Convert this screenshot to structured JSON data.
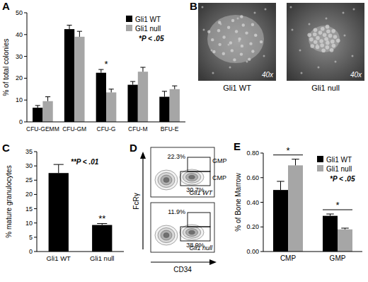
{
  "chart_data": [
    {
      "type": "bar",
      "panel": "A",
      "y_label": "% of total colonies",
      "categories": [
        "CFU-GEMM",
        "CFU-GM",
        "CFU-G",
        "CFU-M",
        "BFU-E"
      ],
      "series": [
        {
          "name": "Gli1 WT",
          "color": "#000000",
          "values": [
            6.5,
            42.5,
            22.5,
            17,
            11.5
          ],
          "errors": [
            1,
            1.8,
            1.5,
            1.5,
            2.5
          ]
        },
        {
          "name": "Gli1 null",
          "color": "#a6a6a6",
          "values": [
            9.5,
            39,
            13.5,
            23,
            15
          ],
          "errors": [
            2,
            2.5,
            1.5,
            2,
            1.5
          ]
        }
      ],
      "ylim": [
        0,
        50
      ],
      "yticks": [
        0,
        10,
        20,
        30,
        40,
        50
      ],
      "grid": false,
      "legend": "top-right",
      "annotations": [
        {
          "text": "*P < .05"
        },
        {
          "text": "*",
          "category": "CFU-G"
        }
      ]
    },
    {
      "type": "bar",
      "panel": "C",
      "y_label": "% mature granulocytes",
      "categories": [
        "Gli1 WT",
        "Gli1 null"
      ],
      "values": [
        27.5,
        9.3
      ],
      "errors": [
        3,
        0.5
      ],
      "color": "#000000",
      "ylim": [
        0,
        35
      ],
      "yticks": [
        0,
        5,
        10,
        15,
        20,
        25,
        30,
        35
      ],
      "grid": false,
      "annotations": [
        {
          "text": "**P < .01"
        },
        {
          "text": "**",
          "category": "Gli1 null"
        }
      ]
    },
    {
      "type": "bar",
      "panel": "E",
      "y_label": "% of Bone Marrow",
      "categories": [
        "CMP",
        "GMP"
      ],
      "series": [
        {
          "name": "Gli1 WT",
          "color": "#000000",
          "values": [
            0.5,
            0.29
          ],
          "errors": [
            0.07,
            0.015
          ]
        },
        {
          "name": "Gli1 null",
          "color": "#a6a6a6",
          "values": [
            0.7,
            0.18
          ],
          "errors": [
            0.05,
            0.01
          ]
        }
      ],
      "ylim": [
        0,
        0.8
      ],
      "yticks": [
        {
          "value": 0,
          "label": "0.00"
        },
        {
          "value": 0.2,
          "label": "0.20"
        },
        {
          "value": 0.4,
          "label": "0.40"
        },
        {
          "value": 0.6,
          "label": "0.60"
        },
        {
          "value": 0.8,
          "label": "0.80"
        }
      ],
      "grid": false,
      "legend": "top-right",
      "annotations": [
        {
          "text": "*P < .05"
        },
        {
          "text": "*",
          "category": "CMP"
        },
        {
          "text": "*",
          "category": "GMP"
        }
      ]
    }
  ],
  "panel_b": {
    "panel": "B",
    "images": [
      {
        "label": "Gli1 WT",
        "magnification": "40x"
      },
      {
        "label": "Gli1 null",
        "magnification": "40x"
      }
    ]
  },
  "panel_d": {
    "panel": "D",
    "x_label": "CD34",
    "y_label": "FcRγ",
    "gate_labels": [
      "GMP",
      "CMP"
    ],
    "plots": [
      {
        "label": "Gli1 WT",
        "percents": [
          "22.3%",
          "30.7%"
        ]
      },
      {
        "label": "Gli1 null",
        "percents": [
          "11.9%",
          "38.9%"
        ]
      }
    ]
  }
}
